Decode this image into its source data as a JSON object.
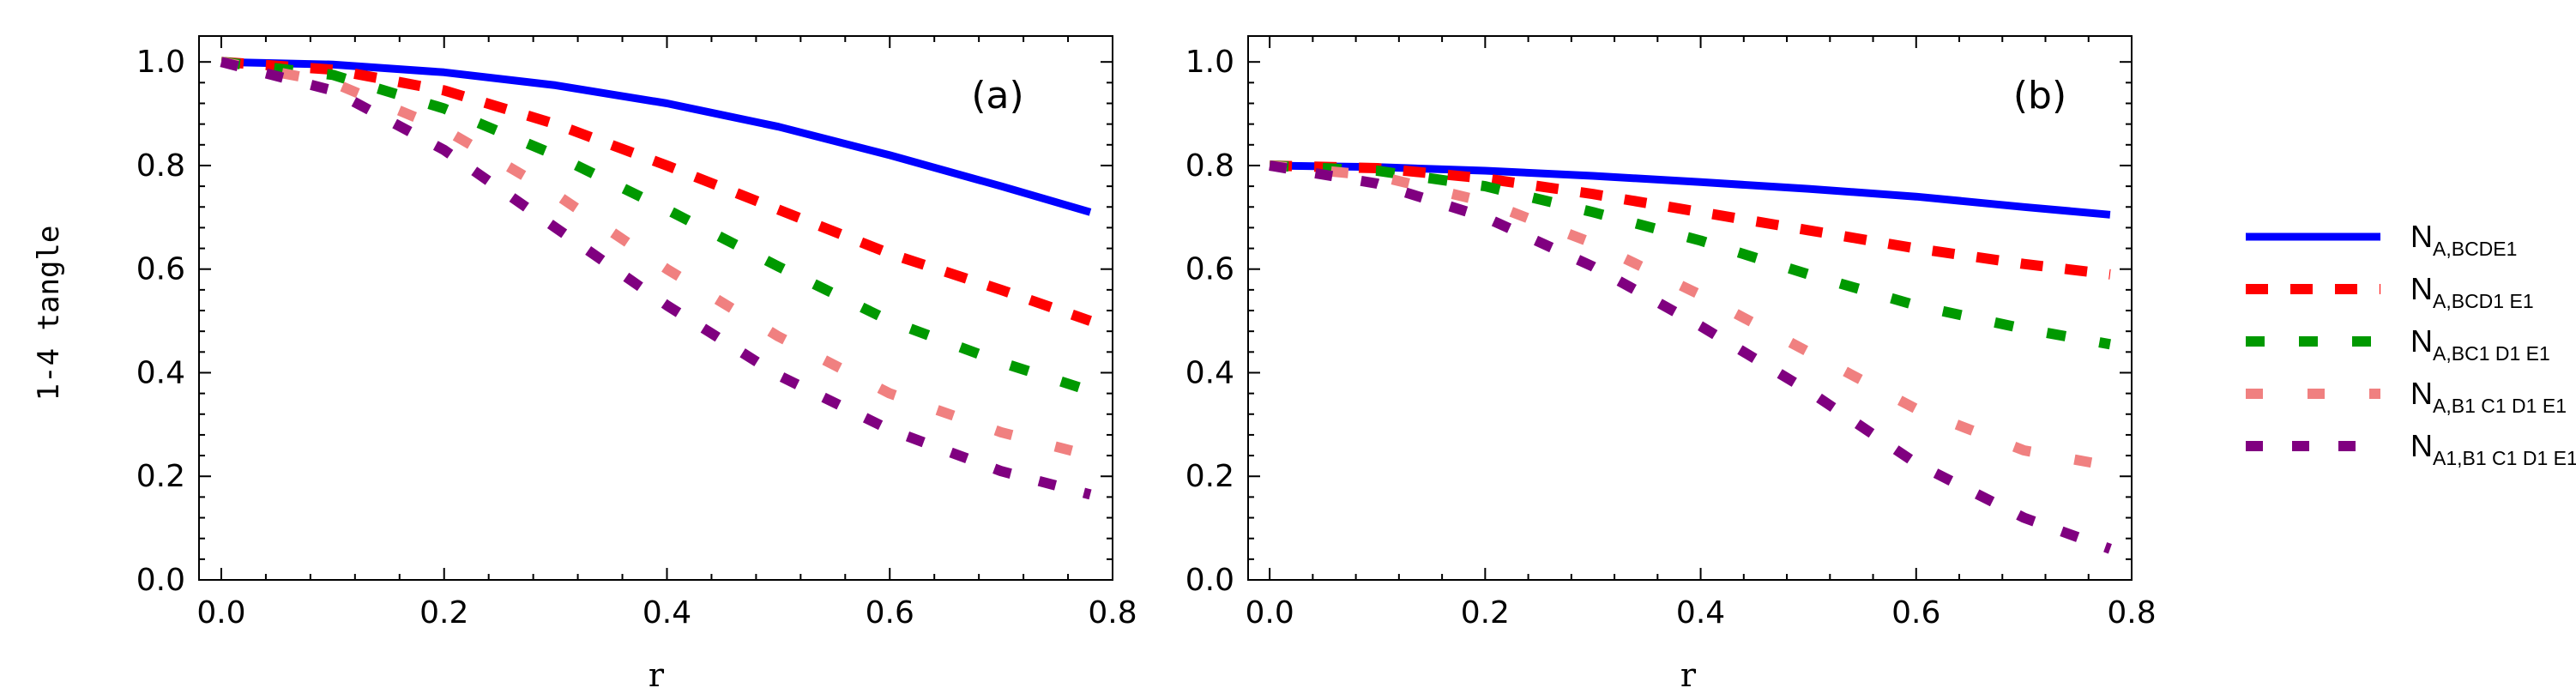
{
  "figure": {
    "ylabel": "1-4 tangle",
    "xlabel": "r"
  },
  "legend": [
    {
      "main": "N",
      "sub": "A,BCDE",
      "sub2": "1",
      "tail": ""
    },
    {
      "main": "N",
      "sub": "A,BCD",
      "sub2": "1",
      "tail": " E",
      "tail_sub": "1"
    },
    {
      "main": "N",
      "sub": "A,BC",
      "sub2": "1",
      "tail": " D",
      "tail_sub": "1",
      "tail2": " E",
      "tail2_sub": "1"
    },
    {
      "main": "N",
      "sub": "A,B",
      "sub2": "1",
      "tail": " C",
      "tail_sub": "1",
      "tail2": " D",
      "tail2_sub": "1",
      "tail3": " E",
      "tail3_sub": "1"
    },
    {
      "main": "N",
      "sub": "A",
      "sub2": "1",
      "sub_after": ",B",
      "sub_after_sub": "1",
      "tail": " C",
      "tail_sub": "1",
      "tail2": " D",
      "tail2_sub": "1",
      "tail3": " E",
      "tail3_sub": "1"
    }
  ],
  "chart_data": [
    {
      "type": "line",
      "panel_label": "(a)",
      "xlabel": "r",
      "ylabel": "1-4 tangle",
      "xlim": [
        -0.02,
        0.8
      ],
      "ylim": [
        0.0,
        1.05
      ],
      "xticks": [
        "0.0",
        "0.2",
        "0.4",
        "0.6",
        "0.8"
      ],
      "yticks": [
        "0.0",
        "0.2",
        "0.4",
        "0.6",
        "0.8",
        "1.0"
      ],
      "x": [
        0.0,
        0.1,
        0.2,
        0.3,
        0.4,
        0.5,
        0.6,
        0.7,
        0.78
      ],
      "series": [
        {
          "name": "N_{A,BCDE1}",
          "color": "#0000ff",
          "values": [
            1.0,
            0.995,
            0.98,
            0.955,
            0.92,
            0.875,
            0.82,
            0.76,
            0.71
          ]
        },
        {
          "name": "N_{A,BCD1E1}",
          "color": "#ff0000",
          "values": [
            1.0,
            0.985,
            0.945,
            0.88,
            0.8,
            0.715,
            0.63,
            0.56,
            0.5
          ]
        },
        {
          "name": "N_{A,BC1D1E1}",
          "color": "#009900",
          "values": [
            1.0,
            0.975,
            0.91,
            0.82,
            0.715,
            0.605,
            0.5,
            0.42,
            0.365
          ]
        },
        {
          "name": "N_{A,B1C1D1E1}",
          "color": "#f08080",
          "values": [
            1.0,
            0.96,
            0.87,
            0.745,
            0.6,
            0.47,
            0.36,
            0.285,
            0.24
          ]
        },
        {
          "name": "N_{A1,B1C1D1E1}",
          "color": "#800080",
          "values": [
            1.0,
            0.945,
            0.83,
            0.68,
            0.53,
            0.395,
            0.29,
            0.21,
            0.165
          ]
        }
      ]
    },
    {
      "type": "line",
      "panel_label": "(b)",
      "xlabel": "r",
      "ylabel": "1-4 tangle",
      "xlim": [
        -0.02,
        0.8
      ],
      "ylim": [
        0.0,
        1.05
      ],
      "xticks": [
        "0.0",
        "0.2",
        "0.4",
        "0.6",
        "0.8"
      ],
      "yticks": [
        "0.0",
        "0.2",
        "0.4",
        "0.6",
        "0.8",
        "1.0"
      ],
      "x": [
        0.0,
        0.1,
        0.2,
        0.3,
        0.4,
        0.5,
        0.6,
        0.7,
        0.78
      ],
      "series": [
        {
          "name": "N_{A,BCDE1}",
          "color": "#0000ff",
          "values": [
            0.8,
            0.797,
            0.79,
            0.78,
            0.768,
            0.755,
            0.74,
            0.72,
            0.705
          ]
        },
        {
          "name": "N_{A,BCD1E1}",
          "color": "#ff0000",
          "values": [
            0.8,
            0.795,
            0.775,
            0.745,
            0.71,
            0.675,
            0.64,
            0.61,
            0.59
          ]
        },
        {
          "name": "N_{A,BC1D1E1}",
          "color": "#009900",
          "values": [
            0.8,
            0.79,
            0.76,
            0.71,
            0.655,
            0.59,
            0.53,
            0.485,
            0.455
          ]
        },
        {
          "name": "N_{A,B1C1D1E1}",
          "color": "#f08080",
          "values": [
            0.8,
            0.78,
            0.73,
            0.65,
            0.55,
            0.44,
            0.33,
            0.25,
            0.22
          ]
        },
        {
          "name": "N_{A1,B1C1D1E1}",
          "color": "#800080",
          "values": [
            0.8,
            0.765,
            0.7,
            0.605,
            0.49,
            0.365,
            0.225,
            0.12,
            0.06
          ]
        }
      ]
    }
  ]
}
